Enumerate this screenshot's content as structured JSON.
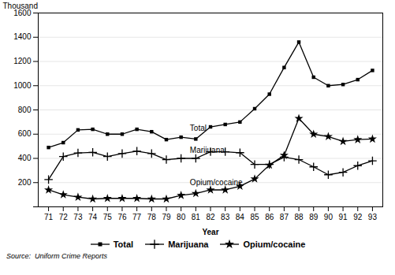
{
  "chart_data": {
    "type": "line",
    "xlabel": "Year",
    "ylabel": "Thousand",
    "x": [
      71,
      72,
      73,
      74,
      75,
      76,
      77,
      78,
      79,
      80,
      81,
      82,
      83,
      84,
      85,
      86,
      87,
      88,
      89,
      90,
      91,
      92,
      93
    ],
    "series": [
      {
        "name": "Total",
        "color": "black",
        "marker": "square",
        "values": [
          490,
          530,
          635,
          640,
          600,
          600,
          640,
          620,
          555,
          575,
          560,
          660,
          680,
          700,
          810,
          930,
          1150,
          1360,
          1070,
          1000,
          1010,
          1050,
          1126
        ]
      },
      {
        "name": "Marijuana",
        "color": "black",
        "marker": "plus",
        "values": [
          225,
          415,
          445,
          450,
          415,
          440,
          460,
          440,
          390,
          400,
          400,
          455,
          455,
          447,
          350,
          350,
          410,
          390,
          330,
          265,
          285,
          340,
          380
        ]
      },
      {
        "name": "Opium/cocaine",
        "color": "black",
        "marker": "star",
        "values": [
          140,
          100,
          80,
          65,
          70,
          70,
          70,
          65,
          65,
          95,
          110,
          140,
          140,
          170,
          230,
          345,
          425,
          730,
          600,
          580,
          540,
          555,
          560
        ]
      }
    ],
    "xlim": [
      70.3,
      93.7
    ],
    "xticks": [
      71,
      72,
      73,
      74,
      75,
      76,
      77,
      78,
      79,
      80,
      81,
      82,
      83,
      84,
      85,
      86,
      87,
      88,
      89,
      90,
      91,
      92,
      93
    ],
    "ylim": [
      0,
      1600
    ],
    "yticks": [
      {
        "value": 0,
        "label": null
      },
      200,
      400,
      600,
      800,
      1000,
      1200,
      1400,
      1600
    ],
    "grid": "y",
    "legend": "bottom",
    "annotations": [
      {
        "x": 80.6,
        "y": 630,
        "text": "Total"
      },
      {
        "x": 80.6,
        "y": 445,
        "text": "Marijuana"
      },
      {
        "x": 80.6,
        "y": 178,
        "text": "Opium/cocaine"
      }
    ],
    "caption": "Source:  Uniform Crime Reports"
  }
}
